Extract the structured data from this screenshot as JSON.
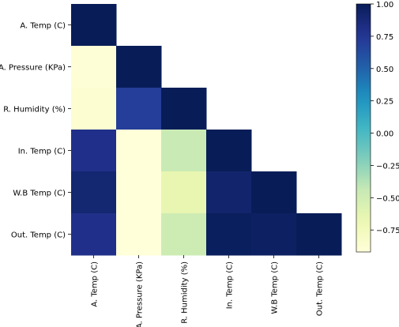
{
  "chart_data": {
    "type": "heatmap",
    "mask": "upper-triangle",
    "row_labels": [
      "A. Temp (C)",
      "A. Pressure (KPa)",
      "R. Humidity (%)",
      "In. Temp (C)",
      "W.B Temp (C)",
      "Out. Temp (C)"
    ],
    "col_labels": [
      "A. Temp (C)",
      "A. Pressure (KPa)",
      "R. Humidity (%)",
      "In. Temp (C)",
      "W.B Temp (C)",
      "Out. Temp (C)"
    ],
    "values": [
      [
        1.0,
        null,
        null,
        null,
        null,
        null
      ],
      [
        -0.9,
        1.0,
        null,
        null,
        null,
        null
      ],
      [
        -0.88,
        0.7,
        1.0,
        null,
        null,
        null
      ],
      [
        0.8,
        -0.93,
        -0.45,
        1.0,
        null,
        null
      ],
      [
        0.9,
        -0.93,
        -0.65,
        0.92,
        1.0,
        null
      ],
      [
        0.8,
        -0.93,
        -0.48,
        0.98,
        0.96,
        1.0
      ]
    ],
    "colormap": "YlGnBu",
    "colorbar": {
      "vmin": -0.92,
      "vmax": 1.0,
      "ticks": [
        1.0,
        0.75,
        0.5,
        0.25,
        0.0,
        -0.25,
        -0.5,
        -0.75
      ],
      "tick_labels": [
        "1.00",
        "0.75",
        "0.50",
        "0.25",
        "0.00",
        "−0.25",
        "−0.50",
        "−0.75"
      ]
    },
    "title": "",
    "xlabel": "",
    "ylabel": ""
  }
}
